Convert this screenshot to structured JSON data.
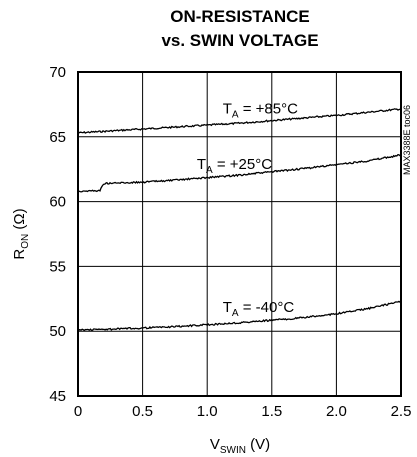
{
  "chart_data": {
    "type": "line",
    "title_lines": [
      "ON-RESISTANCE",
      "vs. SWIN VOLTAGE"
    ],
    "xlabel": {
      "main": "V",
      "sub": "SWIN",
      "rest": " (V)"
    },
    "ylabel": {
      "main": "R",
      "sub": "ON",
      "rest": " (Ω)"
    },
    "xlim": [
      0,
      2.5
    ],
    "ylim": [
      45,
      70
    ],
    "xticks": [
      0,
      0.5,
      1.0,
      1.5,
      2.0,
      2.5
    ],
    "xtick_labels": [
      "0",
      "0.5",
      "1.0",
      "1.5",
      "2.0",
      "2.5"
    ],
    "yticks": [
      45,
      50,
      55,
      60,
      65,
      70
    ],
    "ytick_labels": [
      "45",
      "50",
      "55",
      "60",
      "65",
      "70"
    ],
    "grid": true,
    "figure_code": "MAX3388E toc06",
    "series": [
      {
        "label": {
          "main": "T",
          "sub": "A",
          "rest": " = +85°C"
        },
        "label_at": {
          "x": 1.12,
          "y": 66.8
        },
        "x": [
          0,
          0.25,
          0.5,
          0.75,
          1.0,
          1.25,
          1.5,
          1.75,
          2.0,
          2.25,
          2.5
        ],
        "y": [
          65.3,
          65.45,
          65.6,
          65.75,
          65.9,
          66.05,
          66.25,
          66.45,
          66.65,
          66.9,
          67.15
        ]
      },
      {
        "label": {
          "main": "T",
          "sub": "A",
          "rest": " = +25°C"
        },
        "label_at": {
          "x": 0.92,
          "y": 62.5
        },
        "x": [
          0,
          0.17,
          0.2,
          0.5,
          0.75,
          1.0,
          1.25,
          1.5,
          1.75,
          2.0,
          2.25,
          2.5
        ],
        "y": [
          60.8,
          60.85,
          61.4,
          61.5,
          61.65,
          61.85,
          62.05,
          62.3,
          62.55,
          62.85,
          63.15,
          63.6
        ]
      },
      {
        "label": {
          "main": "T",
          "sub": "A",
          "rest": " = -40°C"
        },
        "label_at": {
          "x": 1.12,
          "y": 51.5
        },
        "x": [
          0,
          0.25,
          0.5,
          0.75,
          1.0,
          1.25,
          1.5,
          1.75,
          2.0,
          2.25,
          2.5
        ],
        "y": [
          50.1,
          50.15,
          50.25,
          50.35,
          50.5,
          50.65,
          50.85,
          51.05,
          51.35,
          51.75,
          52.3
        ]
      }
    ]
  }
}
